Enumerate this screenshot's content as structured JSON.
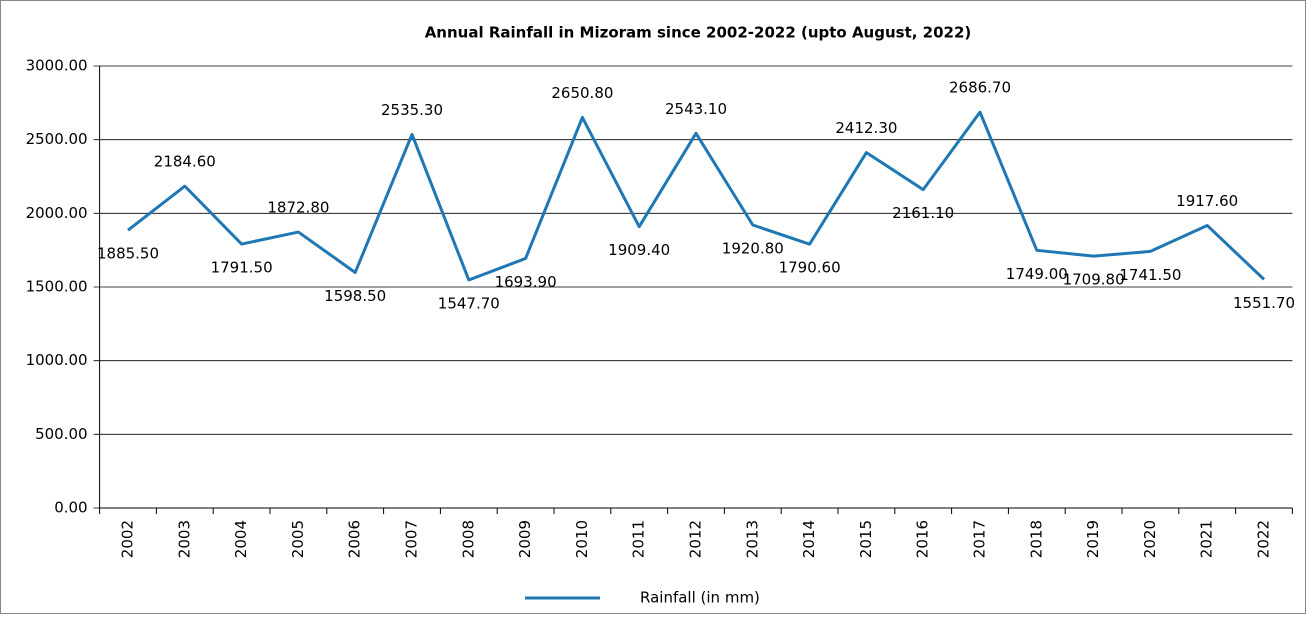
{
  "chart_data": {
    "type": "line",
    "title": "Annual Rainfall in Mizoram since 2002-2022 (upto August, 2022)",
    "categories": [
      "2002",
      "2003",
      "2004",
      "2005",
      "2006",
      "2007",
      "2008",
      "2009",
      "2010",
      "2011",
      "2012",
      "2013",
      "2014",
      "2015",
      "2016",
      "2017",
      "2018",
      "2019",
      "2020",
      "2021",
      "2022"
    ],
    "series": [
      {
        "name": "Rainfall (in mm)",
        "color": "#1f77b4",
        "values": [
          1885.5,
          2184.6,
          1791.5,
          1872.8,
          1598.5,
          2535.3,
          1547.7,
          1693.9,
          2650.8,
          1909.4,
          2543.1,
          1920.8,
          1790.6,
          2412.3,
          2161.1,
          2686.7,
          1749.0,
          1709.8,
          1741.5,
          1917.6,
          1551.7
        ],
        "value_labels": [
          "1885.50",
          "2184.60",
          "1791.50",
          "1872.80",
          "1598.50",
          "2535.30",
          "1547.70",
          "1693.90",
          "2650.80",
          "1909.40",
          "2543.10",
          "1920.80",
          "1790.60",
          "2412.30",
          "2161.10",
          "2686.70",
          "1749.00",
          "1709.80",
          "1741.50",
          "1917.60",
          "1551.70"
        ]
      }
    ],
    "ylim": [
      0,
      3000
    ],
    "yticks": [
      {
        "value": 0,
        "label": "0.00"
      },
      {
        "value": 500,
        "label": "500.00"
      },
      {
        "value": 1000,
        "label": "1000.00"
      },
      {
        "value": 1500,
        "label": "1500.00"
      },
      {
        "value": 2000,
        "label": "2000.00"
      },
      {
        "value": 2500,
        "label": "2500.00"
      },
      {
        "value": 3000,
        "label": "3000.00"
      }
    ],
    "grid": true,
    "legend": "bottom"
  }
}
